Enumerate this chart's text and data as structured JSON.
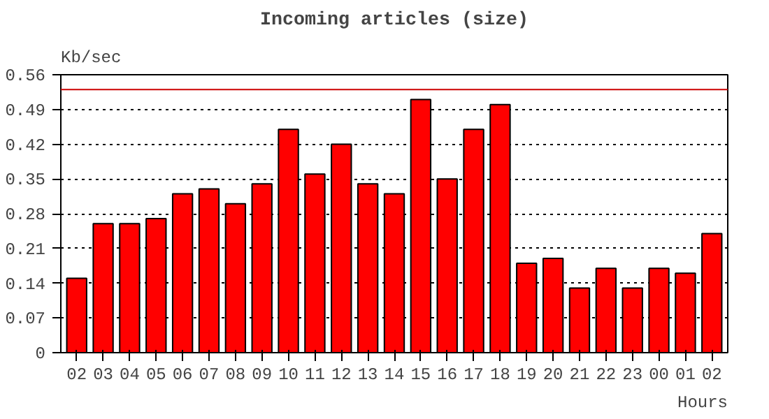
{
  "chart_data": {
    "type": "bar",
    "title": "Incoming articles (size)",
    "xlabel": "Hours",
    "ylabel": "Kb/sec",
    "categories": [
      "02",
      "03",
      "04",
      "05",
      "06",
      "07",
      "08",
      "09",
      "10",
      "11",
      "12",
      "13",
      "14",
      "15",
      "16",
      "17",
      "18",
      "19",
      "20",
      "21",
      "22",
      "23",
      "00",
      "01",
      "02"
    ],
    "values": [
      0.15,
      0.26,
      0.26,
      0.27,
      0.32,
      0.33,
      0.3,
      0.34,
      0.45,
      0.36,
      0.42,
      0.34,
      0.32,
      0.51,
      0.35,
      0.45,
      0.5,
      0.18,
      0.19,
      0.13,
      0.17,
      0.13,
      0.17,
      0.16,
      0.24
    ],
    "color": "#ff0000",
    "ylim": [
      0,
      0.56
    ],
    "yticks": [
      0,
      0.07,
      0.14,
      0.21,
      0.28,
      0.35,
      0.42,
      0.49,
      0.56
    ],
    "grid": "y",
    "ref_lines": [
      {
        "axis": "y",
        "value": 0.53,
        "color": "#cc0000",
        "line_style": "solid"
      }
    ]
  }
}
